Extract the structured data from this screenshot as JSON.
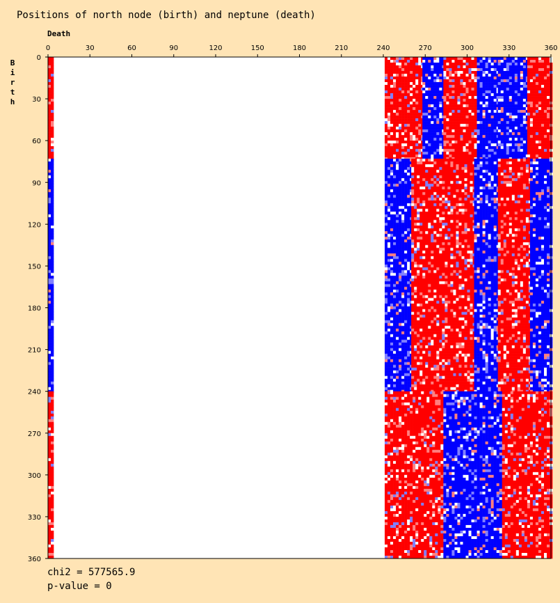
{
  "title": "Positions of north node (birth) and neptune (death)",
  "x_axis_label": "Death",
  "y_axis_label": "Birth",
  "stats": {
    "chi2": "chi2 = 577565.9",
    "p_value": "p-value = 0"
  },
  "colors": {
    "background": "#FFE4B5",
    "high": "#FF0000",
    "low": "#0000FF",
    "neutral": "#FFFFFF"
  },
  "chart_data": {
    "type": "heatmap",
    "title": "Positions of north node (birth) and neptune (death)",
    "xlabel": "Death",
    "ylabel": "Birth",
    "xlim": [
      0,
      360
    ],
    "ylim": [
      0,
      360
    ],
    "x_ticks": [
      0,
      30,
      60,
      90,
      120,
      150,
      180,
      210,
      240,
      270,
      300,
      330,
      360
    ],
    "y_ticks": [
      0,
      30,
      60,
      90,
      120,
      150,
      180,
      210,
      240,
      270,
      300,
      330,
      360
    ],
    "y_axis_inverted": true,
    "color_scale": "blue (below expected) - white - red (above expected)",
    "populated_death_ranges": [
      [
        0,
        4
      ],
      [
        240,
        360
      ]
    ],
    "bands": [
      {
        "birth": [
          0,
          73
        ],
        "death": [
          0,
          4
        ],
        "sign": 1
      },
      {
        "birth": [
          73,
          240
        ],
        "death": [
          0,
          4
        ],
        "sign": -1
      },
      {
        "birth": [
          240,
          360
        ],
        "death": [
          0,
          4
        ],
        "sign": 1
      },
      {
        "birth": [
          0,
          73
        ],
        "death": [
          241,
          268
        ],
        "sign": 1
      },
      {
        "birth": [
          0,
          73
        ],
        "death": [
          268,
          283
        ],
        "sign": -1
      },
      {
        "birth": [
          0,
          73
        ],
        "death": [
          283,
          307
        ],
        "sign": 1
      },
      {
        "birth": [
          0,
          73
        ],
        "death": [
          307,
          322
        ],
        "sign": -1
      },
      {
        "birth": [
          0,
          73
        ],
        "death": [
          322,
          343
        ],
        "sign": -1
      },
      {
        "birth": [
          0,
          73
        ],
        "death": [
          343,
          360
        ],
        "sign": 1
      },
      {
        "birth": [
          73,
          240
        ],
        "death": [
          241,
          260
        ],
        "sign": -1
      },
      {
        "birth": [
          73,
          240
        ],
        "death": [
          260,
          305
        ],
        "sign": 1
      },
      {
        "birth": [
          73,
          240
        ],
        "death": [
          305,
          322
        ],
        "sign": -1
      },
      {
        "birth": [
          73,
          240
        ],
        "death": [
          322,
          345
        ],
        "sign": 1
      },
      {
        "birth": [
          73,
          240
        ],
        "death": [
          345,
          360
        ],
        "sign": -1
      },
      {
        "birth": [
          240,
          360
        ],
        "death": [
          241,
          283
        ],
        "sign": 1
      },
      {
        "birth": [
          240,
          360
        ],
        "death": [
          283,
          325
        ],
        "sign": -1
      },
      {
        "birth": [
          240,
          360
        ],
        "death": [
          325,
          345
        ],
        "sign": 1
      },
      {
        "birth": [
          240,
          360
        ],
        "death": [
          345,
          360
        ],
        "sign": 1
      }
    ]
  }
}
